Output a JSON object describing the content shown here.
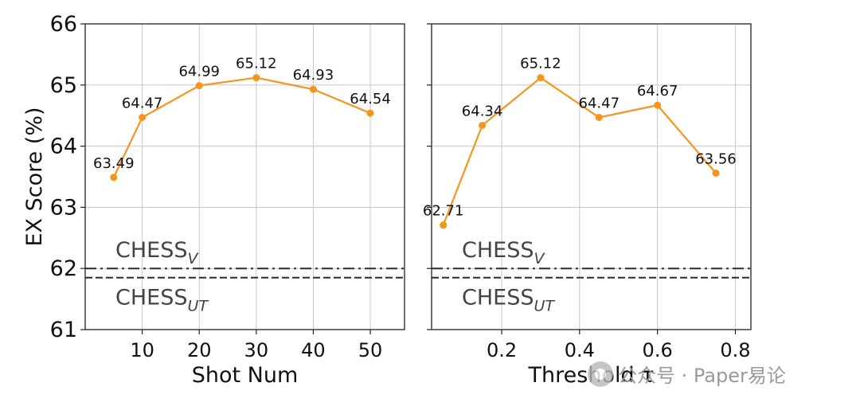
{
  "chart_data": [
    {
      "type": "line",
      "xlabel": "Shot Num",
      "ylabel": "EX Score (%)",
      "ylim": [
        61,
        66
      ],
      "xlim": [
        0,
        56
      ],
      "xticks": [
        10,
        20,
        30,
        40,
        50
      ],
      "yticks": [
        61,
        62,
        63,
        64,
        65,
        66
      ],
      "grid": true,
      "color": "#f7941d",
      "x": [
        5,
        10,
        20,
        30,
        40,
        50
      ],
      "values": [
        63.49,
        64.47,
        64.99,
        65.12,
        64.93,
        64.54
      ],
      "labels": [
        "63.49",
        "64.47",
        "64.99",
        "65.12",
        "64.93",
        "64.54"
      ],
      "baselines": [
        {
          "name": "CHESS",
          "sub": "V",
          "value": 62.0,
          "style": "dashdot"
        },
        {
          "name": "CHESS",
          "sub": "UT",
          "value": 61.85,
          "style": "dashed"
        }
      ]
    },
    {
      "type": "line",
      "xlabel": "Threshold τ",
      "ylabel": "",
      "ylim": [
        61,
        66
      ],
      "xlim": [
        0.02,
        0.84
      ],
      "xticks": [
        0.2,
        0.4,
        0.6,
        0.8
      ],
      "xtick_labels": [
        "0.2",
        "0.4",
        "0.6",
        "0.8"
      ],
      "yticks": [
        61,
        62,
        63,
        64,
        65,
        66
      ],
      "grid": true,
      "color": "#f7941d",
      "x": [
        0.05,
        0.15,
        0.3,
        0.45,
        0.6,
        0.75
      ],
      "values": [
        62.71,
        64.34,
        65.12,
        64.47,
        64.67,
        63.56
      ],
      "labels": [
        "62.71",
        "64.34",
        "65.12",
        "64.47",
        "64.67",
        "63.56"
      ],
      "baselines": [
        {
          "name": "CHESS",
          "sub": "V",
          "value": 62.0,
          "style": "dashdot"
        },
        {
          "name": "CHESS",
          "sub": "UT",
          "value": 61.85,
          "style": "dashed"
        }
      ]
    }
  ],
  "watermark": {
    "text": "公众号 · Paper易论"
  }
}
